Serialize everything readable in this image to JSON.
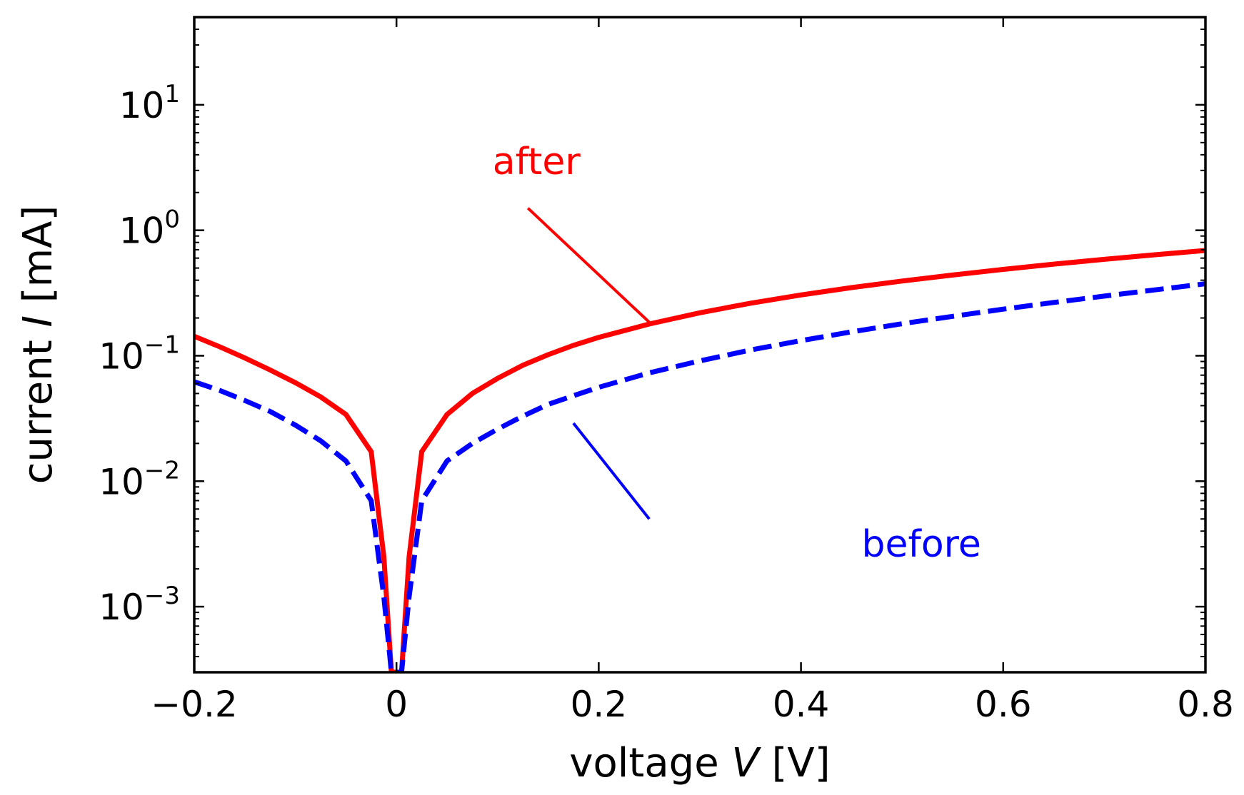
{
  "chart_data": {
    "type": "line",
    "xlabel": "voltage V [V]",
    "xlabel_parts": {
      "pre": "voltage ",
      "var": "V",
      "post": " [V]"
    },
    "ylabel": "current I [mA]",
    "ylabel_parts": {
      "pre": "current ",
      "var": "I",
      "post": " [mA]"
    },
    "xlim": [
      -0.2,
      0.8
    ],
    "ylim": [
      0.0003,
      50
    ],
    "yscale": "log",
    "grid": false,
    "x_ticks": [
      {
        "value": -0.2,
        "label": "−0.2"
      },
      {
        "value": 0,
        "label": "0"
      },
      {
        "value": 0.2,
        "label": "0.2"
      },
      {
        "value": 0.4,
        "label": "0.4"
      },
      {
        "value": 0.6,
        "label": "0.6"
      },
      {
        "value": 0.8,
        "label": "0.8"
      }
    ],
    "y_ticks": [
      {
        "value": 0.001,
        "base": "10",
        "exp": "−3"
      },
      {
        "value": 0.01,
        "base": "10",
        "exp": "−2"
      },
      {
        "value": 0.1,
        "base": "10",
        "exp": "−1"
      },
      {
        "value": 1,
        "base": "10",
        "exp": "0"
      },
      {
        "value": 10,
        "base": "10",
        "exp": "1"
      }
    ],
    "series": [
      {
        "name": "after",
        "color": "#ff0000",
        "style": "solid",
        "x": [
          -0.2,
          -0.175,
          -0.15,
          -0.125,
          -0.1,
          -0.075,
          -0.05,
          -0.025,
          -0.0125,
          -0.005,
          0.005,
          0.0125,
          0.025,
          0.05,
          0.075,
          0.1,
          0.125,
          0.15,
          0.175,
          0.2,
          0.25,
          0.3,
          0.35,
          0.4,
          0.45,
          0.5,
          0.55,
          0.6,
          0.65,
          0.7,
          0.75,
          0.8
        ],
        "y": [
          0.143,
          0.118,
          0.096,
          0.077,
          0.061,
          0.047,
          0.034,
          0.0172,
          0.0025,
          0.0003,
          0.0003,
          0.0025,
          0.0172,
          0.034,
          0.05,
          0.066,
          0.084,
          0.102,
          0.121,
          0.14,
          0.179,
          0.22,
          0.262,
          0.305,
          0.349,
          0.394,
          0.44,
          0.488,
          0.537,
          0.587,
          0.638,
          0.69
        ]
      },
      {
        "name": "before",
        "color": "#0000ff",
        "style": "dashed",
        "x": [
          -0.2,
          -0.175,
          -0.15,
          -0.125,
          -0.1,
          -0.075,
          -0.05,
          -0.025,
          -0.0125,
          -0.005,
          0.005,
          0.0125,
          0.025,
          0.05,
          0.075,
          0.1,
          0.125,
          0.15,
          0.175,
          0.2,
          0.25,
          0.3,
          0.35,
          0.4,
          0.45,
          0.5,
          0.55,
          0.6,
          0.65,
          0.7,
          0.75,
          0.8
        ],
        "y": [
          0.062,
          0.053,
          0.044,
          0.036,
          0.028,
          0.021,
          0.0145,
          0.007,
          0.0012,
          0.0003,
          0.0003,
          0.0012,
          0.007,
          0.0145,
          0.02,
          0.026,
          0.033,
          0.041,
          0.048,
          0.056,
          0.073,
          0.091,
          0.111,
          0.132,
          0.155,
          0.18,
          0.206,
          0.235,
          0.266,
          0.299,
          0.335,
          0.375
        ]
      }
    ],
    "annotations": [
      {
        "text": "after",
        "color": "#ff0000",
        "text_x": 0.095,
        "text_y": 2.8,
        "line_from": [
          0.13,
          1.5
        ],
        "line_to": [
          0.25,
          0.185
        ]
      },
      {
        "text": "before",
        "color": "#0000ff",
        "text_x": 0.46,
        "text_y": 0.0025,
        "line_from": [
          0.25,
          0.005
        ],
        "line_to": [
          0.175,
          0.029
        ]
      }
    ]
  }
}
